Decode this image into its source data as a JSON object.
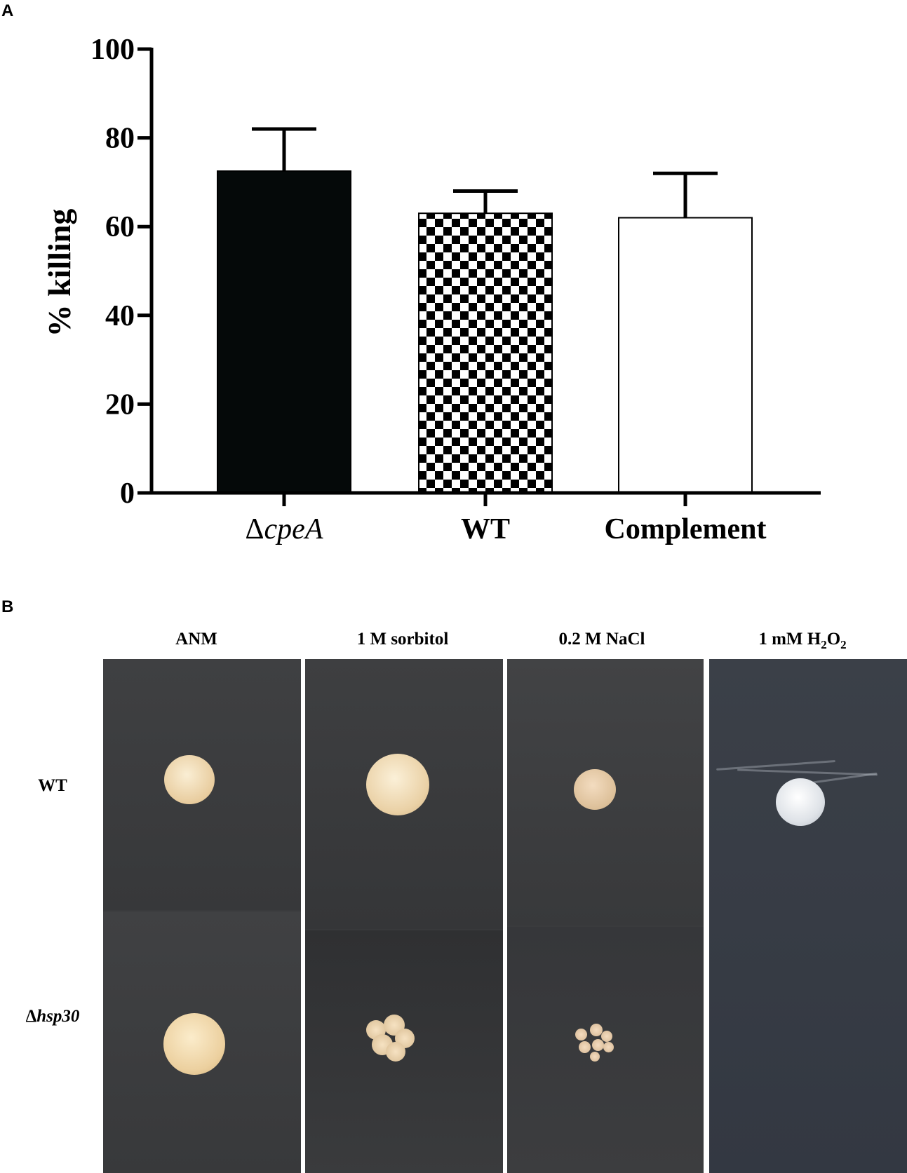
{
  "panels": {
    "a": "A",
    "b": "B"
  },
  "chart_data": {
    "type": "bar",
    "title": "",
    "ylabel": "% killing",
    "xlabel": "",
    "ylim": [
      0,
      100
    ],
    "yticks": [
      0,
      20,
      40,
      60,
      80,
      100
    ],
    "categories": [
      "ΔcpeA",
      "WT",
      "Complement"
    ],
    "category_parts": [
      {
        "prefix": "Δ",
        "italic": "cpeA"
      },
      {
        "prefix": "",
        "italic": "",
        "plain": "WT"
      },
      {
        "prefix": "",
        "italic": "",
        "plain": "Complement"
      }
    ],
    "values": [
      72.5,
      63,
      62
    ],
    "errors": [
      9.5,
      5,
      10
    ],
    "fills": [
      "solid-black",
      "checkerboard",
      "white"
    ],
    "grid": false,
    "legend": "none"
  },
  "plates": {
    "columns": [
      "ANM",
      "1 M sorbitol",
      "0.2 M NaCl",
      "1 mM H2O2"
    ],
    "h2o2": {
      "base": "1 mM H",
      "sub1": "2",
      "mid": "O",
      "sub2": "2"
    },
    "rows": [
      {
        "prefix": "",
        "italic": "",
        "plain": "WT"
      },
      {
        "prefix": "Δ",
        "italic": "hsp30",
        "plain": ""
      }
    ],
    "colors": {
      "plate_dark": "#3a3b3d",
      "plate_blue": "#363c46",
      "colony_cream": "#f0d9b3",
      "colony_grey": "#d9dde2"
    }
  }
}
